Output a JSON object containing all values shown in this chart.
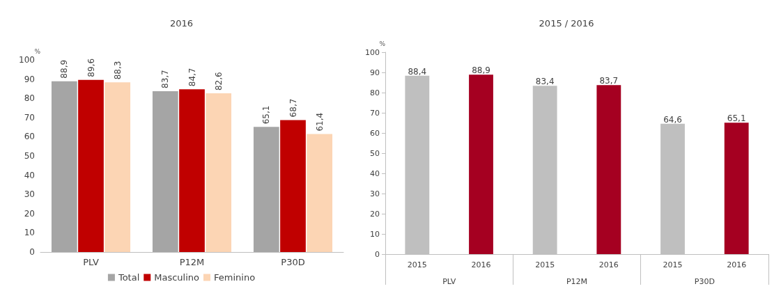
{
  "chart_data": [
    {
      "type": "bar",
      "title": "2016",
      "ylabel": "%",
      "categories": [
        "PLV",
        "P12M",
        "P30D"
      ],
      "ylim": [
        0,
        100
      ],
      "yticks": [
        0,
        10,
        20,
        30,
        40,
        50,
        60,
        70,
        80,
        90,
        100
      ],
      "grid": false,
      "legend": "bottom",
      "series": [
        {
          "name": "Total",
          "color": "#a5a5a5",
          "values": [
            88.9,
            83.7,
            65.1
          ],
          "value_labels": [
            "88,9",
            "83,7",
            "65,1"
          ]
        },
        {
          "name": "Masculino",
          "color": "#c00000",
          "values": [
            89.6,
            84.7,
            68.7
          ],
          "value_labels": [
            "89,6",
            "84,7",
            "68,7"
          ]
        },
        {
          "name": "Feminino",
          "color": "#fcd5b4",
          "values": [
            88.3,
            82.6,
            61.4
          ],
          "value_labels": [
            "88,3",
            "82,6",
            "61,4"
          ]
        }
      ]
    },
    {
      "type": "bar",
      "title": "2015 / 2016",
      "ylabel": "%",
      "categories": [
        "2015",
        "2016",
        "2015",
        "2016",
        "2015",
        "2016"
      ],
      "ylim": [
        0,
        100
      ],
      "yticks": [
        0,
        10,
        20,
        30,
        40,
        50,
        60,
        70,
        80,
        90,
        100
      ],
      "grid": false,
      "legend": false,
      "values": [
        88.4,
        88.9,
        83.4,
        83.7,
        64.6,
        65.1
      ],
      "colors": [
        "#bfbfbf",
        "#a50021",
        "#bfbfbf",
        "#a50021",
        "#bfbfbf",
        "#a50021"
      ],
      "value_labels": [
        "88,4",
        "88,9",
        "83,4",
        "83,7",
        "64,6",
        "65,1"
      ],
      "annotations": [
        "PLV",
        "P12M",
        "P30D"
      ]
    }
  ]
}
